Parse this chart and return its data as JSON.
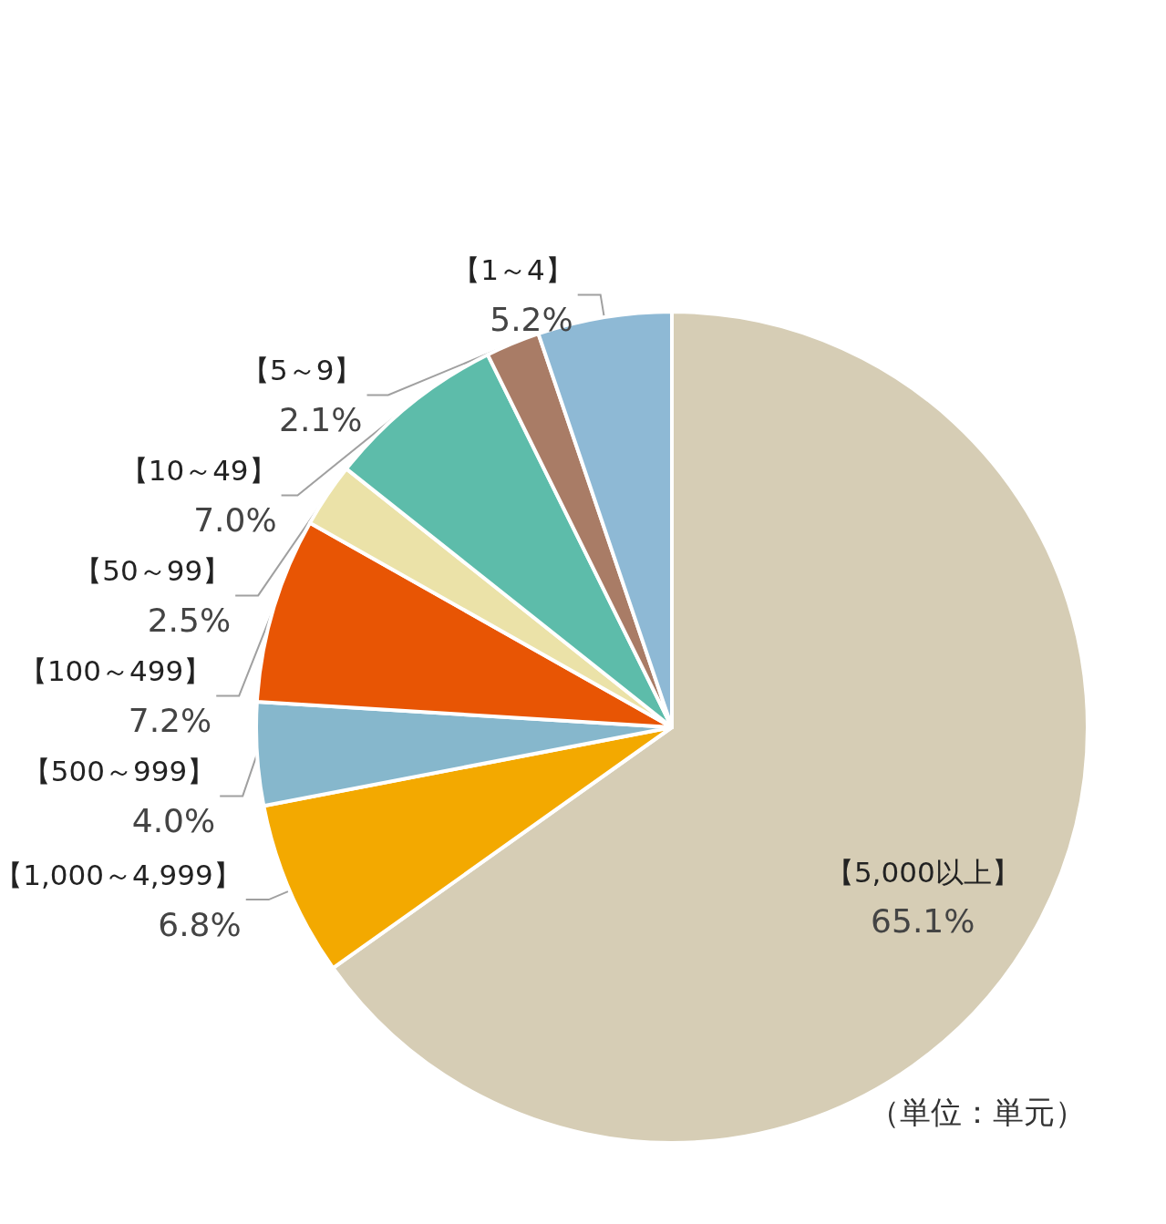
{
  "chart_data": {
    "type": "pie",
    "categories": [
      "【5,000以上】",
      "【1,000～4,999】",
      "【500～999】",
      "【100～499】",
      "【50～99】",
      "【10～49】",
      "【5～9】",
      "【1～4】"
    ],
    "values": [
      65.1,
      6.8,
      4.0,
      7.2,
      2.5,
      7.0,
      2.1,
      5.2
    ],
    "value_labels": [
      "65.1%",
      "6.8%",
      "4.0%",
      "7.2%",
      "2.5%",
      "7.0%",
      "2.1%",
      "5.2%"
    ],
    "colors": [
      "#d6cdb5",
      "#f3a900",
      "#86b7cc",
      "#e85504",
      "#ebe2a8",
      "#5dbcaa",
      "#a97c66",
      "#8eb9d5"
    ],
    "annotations": [
      "（単位：単元）"
    ]
  }
}
